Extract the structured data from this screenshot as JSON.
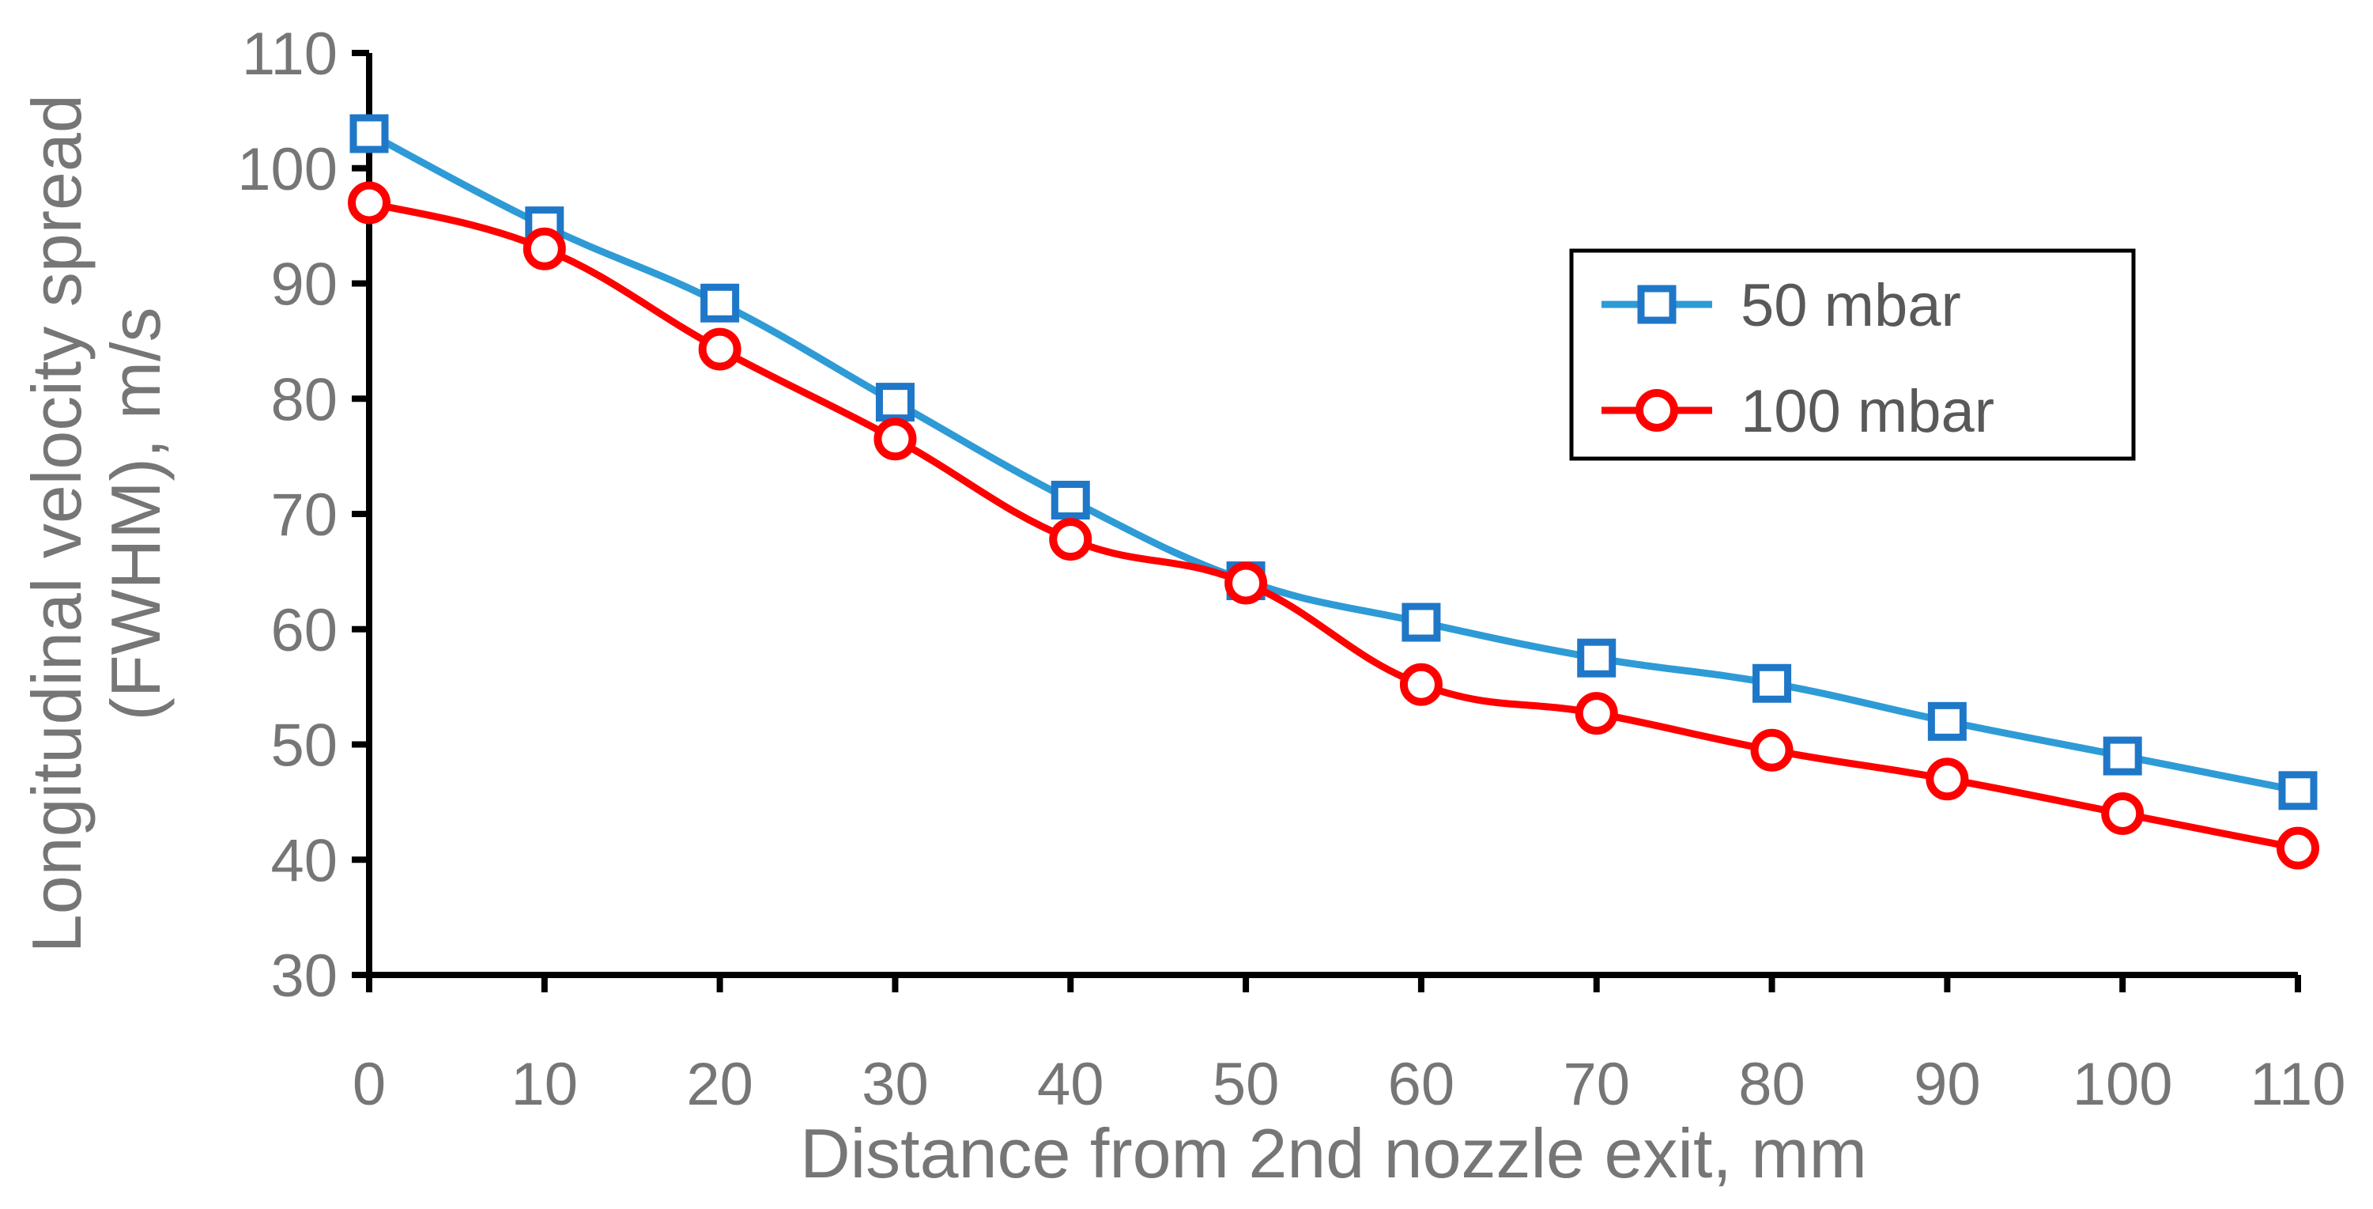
{
  "chart_data": {
    "type": "line",
    "title": "",
    "xlabel": "Distance from 2nd nozzle exit, mm",
    "ylabel_lines": [
      "Longitudinal velocity spread",
      "(FWHM), m/s"
    ],
    "xlim": [
      0,
      110
    ],
    "ylim": [
      30,
      110
    ],
    "x_ticks": [
      0,
      10,
      20,
      30,
      40,
      50,
      60,
      70,
      80,
      90,
      100,
      110
    ],
    "y_ticks": [
      30,
      40,
      50,
      60,
      70,
      80,
      90,
      100,
      110
    ],
    "grid": false,
    "legend_position": "right",
    "x": [
      0,
      10,
      20,
      30,
      40,
      50,
      60,
      70,
      80,
      90,
      100,
      110
    ],
    "series": [
      {
        "name": "50 mbar",
        "marker": "square",
        "color": "#2E9BD6",
        "marker_color": "#1F77C8",
        "values": [
          103,
          95,
          88.3,
          79.7,
          71.2,
          64.2,
          60.6,
          57.5,
          55.3,
          52,
          49,
          46
        ]
      },
      {
        "name": "100 mbar",
        "marker": "circle",
        "color": "#FF0000",
        "marker_color": "#FF0000",
        "values": [
          97,
          93,
          84.3,
          76.5,
          67.8,
          64,
          55.2,
          52.7,
          49.5,
          47,
          44,
          41
        ]
      }
    ]
  }
}
